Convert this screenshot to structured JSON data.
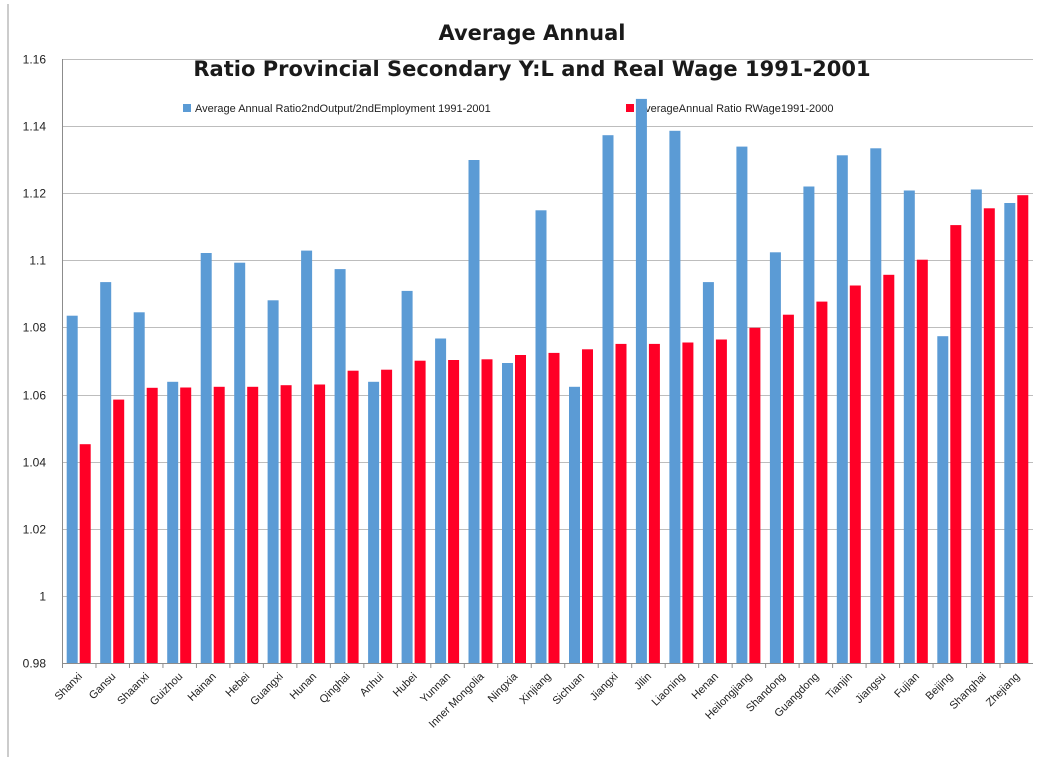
{
  "chart_data": {
    "type": "bar",
    "title_line1": "Average Annual",
    "title_line2": "Ratio Provincial Secondary Y:L and Real Wage 1991-2001",
    "xlabel": "",
    "ylabel": "",
    "ylim": [
      0.98,
      1.16
    ],
    "yticks": [
      0.98,
      1,
      1.02,
      1.04,
      1.06,
      1.08,
      1.1,
      1.12,
      1.14,
      1.16
    ],
    "ytick_labels": [
      "0.98",
      "1",
      "1.02",
      "1.04",
      "1.06",
      "1.08",
      "1.1",
      "1.12",
      "1.14",
      "1.16"
    ],
    "grid": true,
    "legend_position": "top-center",
    "categories": [
      "Shanxi",
      "Gansu",
      "Shaanxi",
      "Guizhou",
      "Hainan",
      "Hebei",
      "Guangxi",
      "Hunan",
      "Qinghai",
      "Anhui",
      "Hubei",
      "Yunnan",
      "Inner Mongolia",
      "Ningxia",
      "Xinjiang",
      "Sichuan",
      "Jiangxi",
      "Jilin",
      "Liaoning",
      "Henan",
      "Heilongjiang",
      "Shandong",
      "Guangdong",
      "Tianjin",
      "Jiangsu",
      "Fujian",
      "Beijing",
      "Shanghai",
      "Zhejiang"
    ],
    "series": [
      {
        "name": "Average Annual Ratio2ndOutput/2ndEmployment 1991-2001",
        "color": "#5b9bd5",
        "values": [
          1.0835,
          1.0935,
          1.0845,
          1.0638,
          1.1022,
          1.0993,
          1.0881,
          1.1029,
          1.0974,
          1.0638,
          1.0909,
          1.0767,
          1.1299,
          1.0694,
          1.1149,
          1.0623,
          1.1373,
          1.1481,
          1.1386,
          1.0935,
          1.1339,
          1.1024,
          1.122,
          1.1313,
          1.1334,
          1.1208,
          1.0774,
          1.1211,
          1.1171
        ]
      },
      {
        "name": "AverageAnnual Ratio RWage1991-2000",
        "color": "#ff0026",
        "values": [
          1.0452,
          1.0585,
          1.062,
          1.0621,
          1.0623,
          1.0623,
          1.0628,
          1.063,
          1.0671,
          1.0674,
          1.0701,
          1.0703,
          1.0705,
          1.0718,
          1.0724,
          1.0735,
          1.0751,
          1.0751,
          1.0755,
          1.0764,
          1.0799,
          1.0838,
          1.0877,
          1.0925,
          1.0957,
          1.1002,
          1.1105,
          1.1155,
          1.1194
        ]
      }
    ]
  }
}
